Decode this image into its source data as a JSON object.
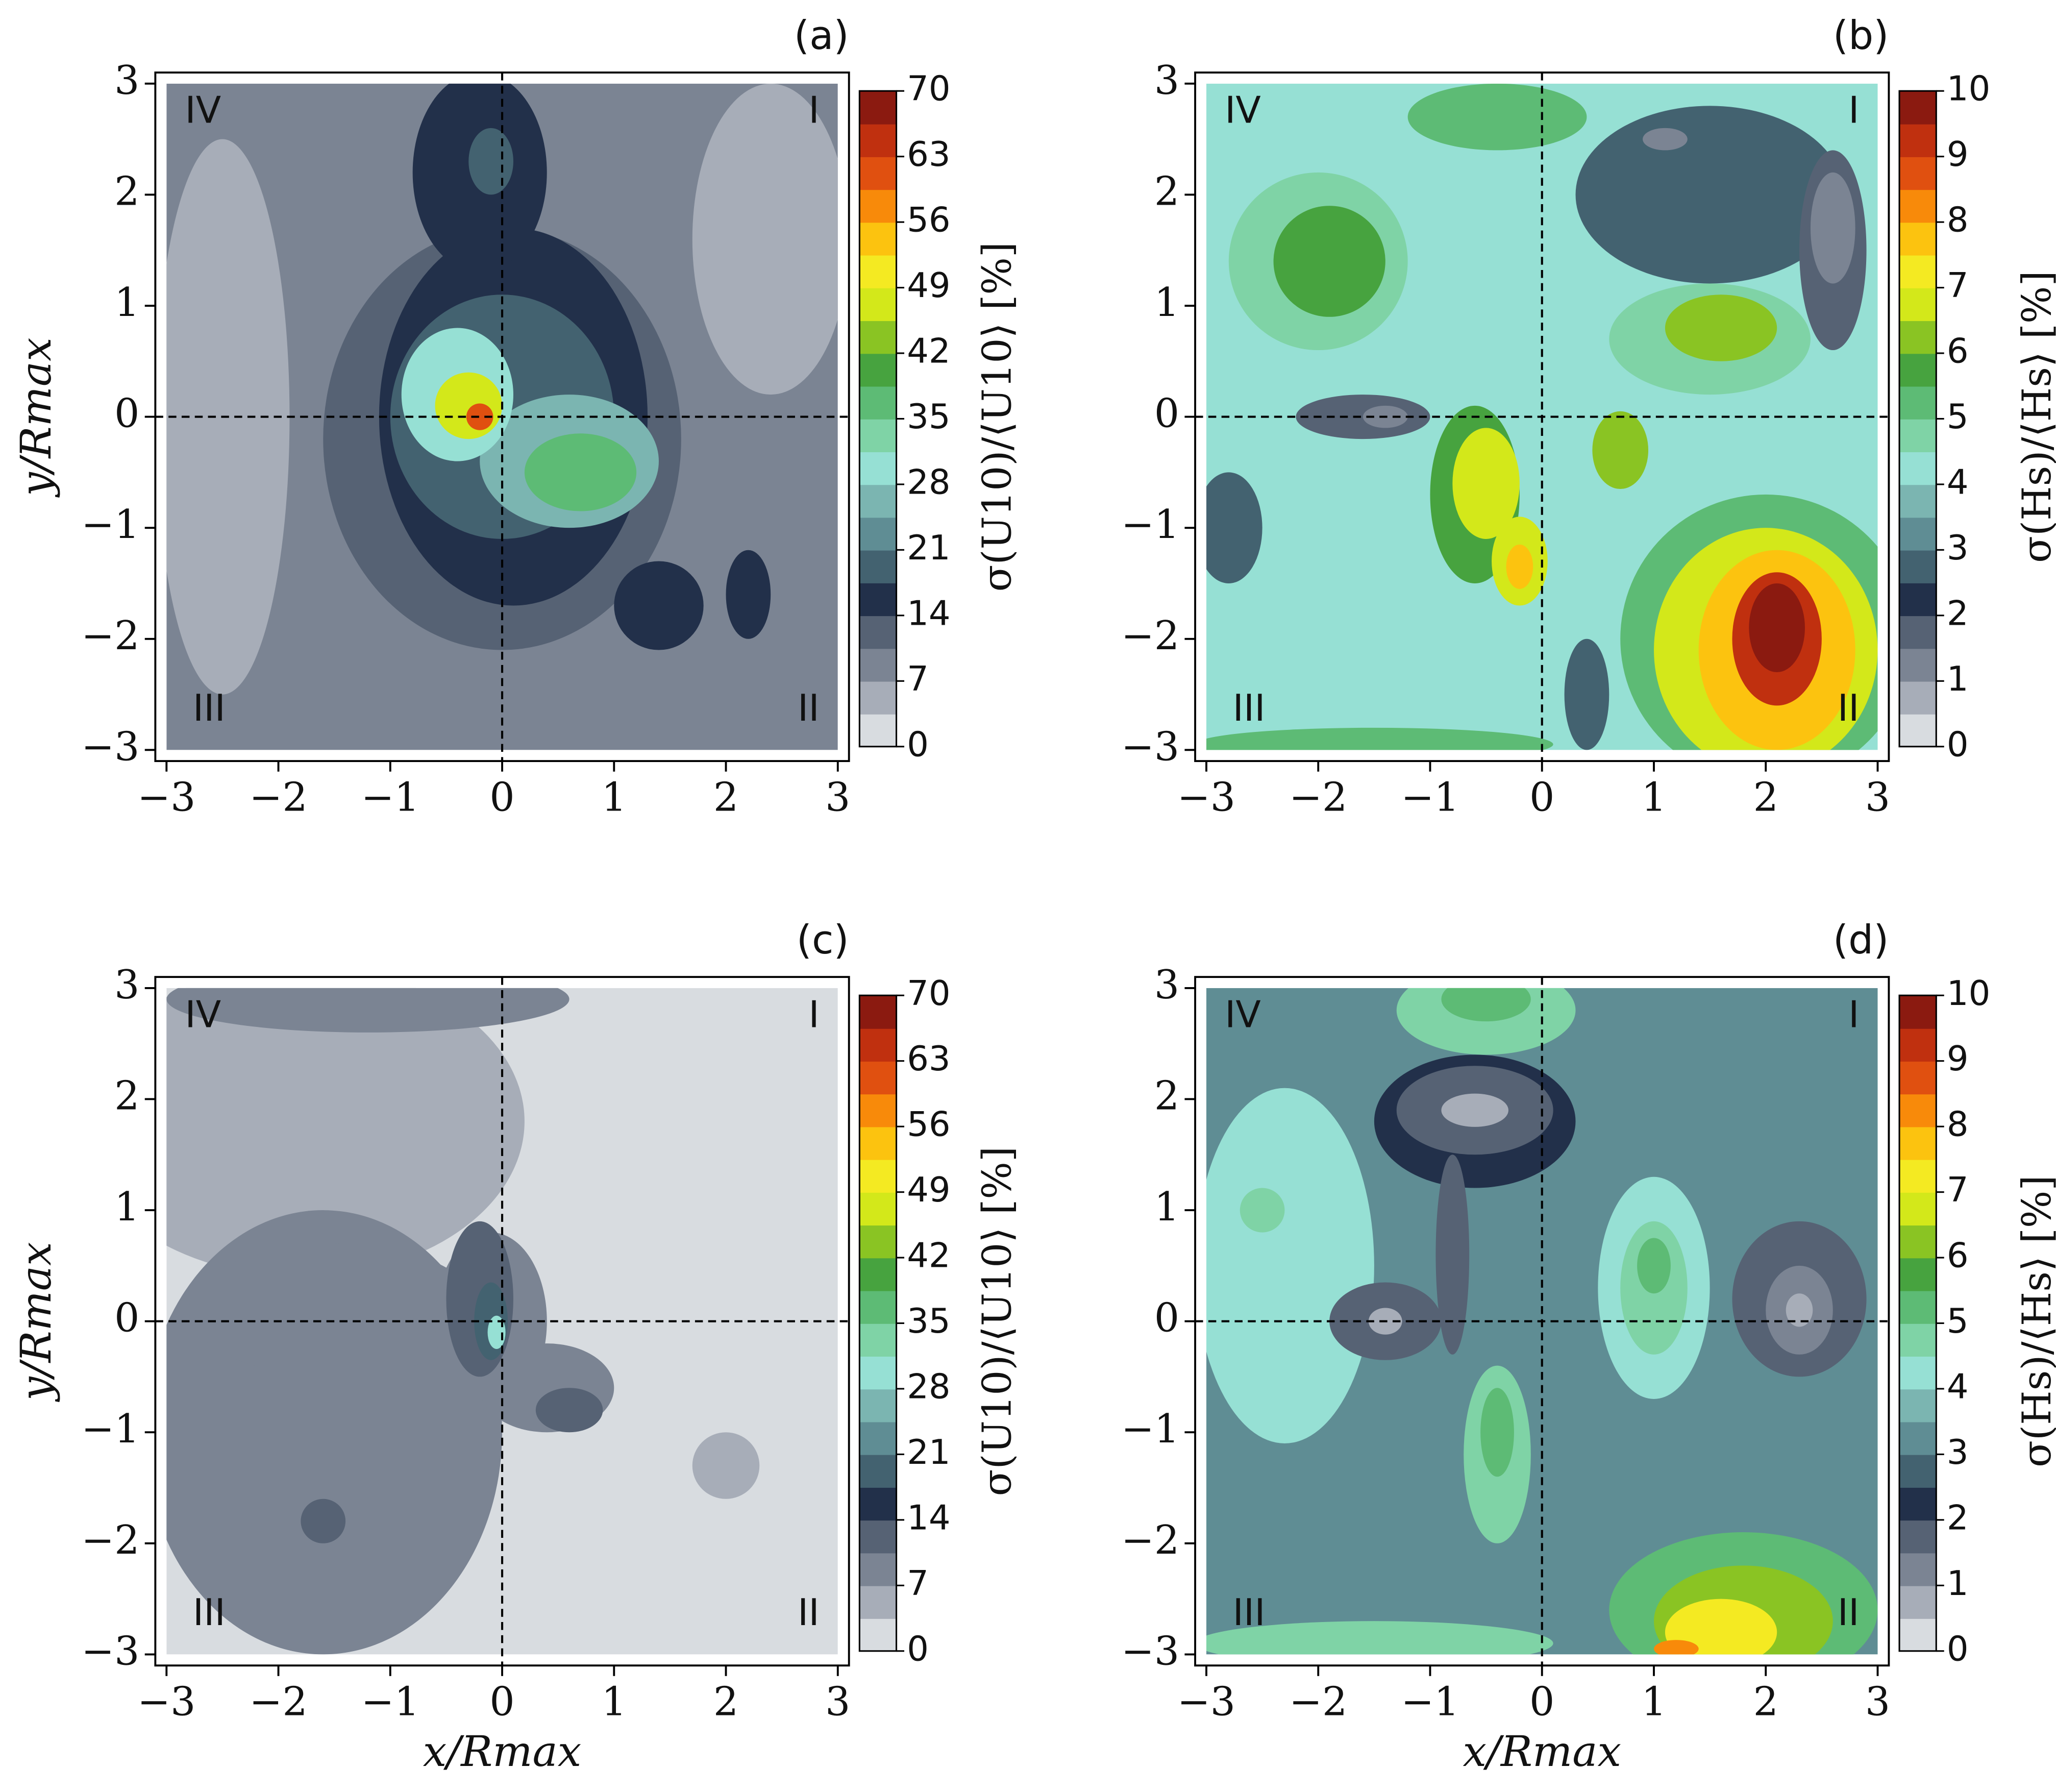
{
  "chart_data": [
    {
      "type": "contour",
      "title": "(a)",
      "ylabel": "y/Rmax",
      "colorbar_label": "σ(U10)/⟨U10⟩ [%]",
      "xlim": [
        -3.1,
        3.1
      ],
      "ylim": [
        -3.1,
        3.1
      ],
      "xticks": [
        {
          "value": -3,
          "label": "−3"
        },
        {
          "value": -2,
          "label": "−2"
        },
        {
          "value": -1,
          "label": "−1"
        },
        0,
        1,
        2,
        3
      ],
      "yticks": [
        {
          "value": -3,
          "label": "−3"
        },
        {
          "value": -2,
          "label": "−2"
        },
        {
          "value": -1,
          "label": "−1"
        },
        0,
        1,
        2,
        3
      ],
      "clim": [
        0,
        70
      ],
      "cticks": [
        0,
        7,
        14,
        21,
        28,
        35,
        42,
        49,
        56,
        63,
        70
      ],
      "colors": [
        "#d8dce0",
        "#a7adb8",
        "#7b8493",
        "#566274",
        "#22304a",
        "#436270",
        "#5f8d94",
        "#7bb5b1",
        "#96e0d4",
        "#7fd3a6",
        "#5dbb75",
        "#47a33f",
        "#8ac423",
        "#d3e81a",
        "#f4ea22",
        "#fcc30f",
        "#f88a0a",
        "#e05010",
        "#c0300f",
        "#8b1a10"
      ],
      "quadrant_labels": [
        "I",
        "II",
        "III",
        "IV"
      ],
      "field_x": [
        -3,
        3
      ],
      "field_y": [
        -3,
        3
      ],
      "background_level": 9,
      "regions": [
        {
          "x": -2.5,
          "y": 0,
          "rx": 0.6,
          "ry": 2.5,
          "level": 5
        },
        {
          "x": 2.4,
          "y": 1.6,
          "rx": 0.7,
          "ry": 1.4,
          "level": 5
        },
        {
          "x": 0,
          "y": -0.2,
          "rx": 1.6,
          "ry": 1.9,
          "level": 12
        },
        {
          "x": 0.1,
          "y": 0,
          "rx": 1.2,
          "ry": 1.7,
          "level": 15
        },
        {
          "x": -0.2,
          "y": 2.2,
          "rx": 0.6,
          "ry": 0.9,
          "level": 15
        },
        {
          "x": 1.4,
          "y": -1.7,
          "rx": 0.4,
          "ry": 0.4,
          "level": 15
        },
        {
          "x": 2.2,
          "y": -1.6,
          "rx": 0.2,
          "ry": 0.4,
          "level": 15
        },
        {
          "x": 0,
          "y": 0,
          "rx": 1.0,
          "ry": 1.1,
          "level": 18
        },
        {
          "x": -0.1,
          "y": 2.3,
          "rx": 0.2,
          "ry": 0.3,
          "level": 18
        },
        {
          "x": 0.6,
          "y": -0.4,
          "rx": 0.8,
          "ry": 0.6,
          "level": 25
        },
        {
          "x": -0.4,
          "y": 0.2,
          "rx": 0.5,
          "ry": 0.6,
          "level": 30
        },
        {
          "x": 0.7,
          "y": -0.5,
          "rx": 0.5,
          "ry": 0.35,
          "level": 38
        },
        {
          "x": -0.3,
          "y": 0.1,
          "rx": 0.3,
          "ry": 0.3,
          "level": 47
        },
        {
          "x": -0.2,
          "y": 0,
          "rx": 0.12,
          "ry": 0.12,
          "level": 60
        }
      ]
    },
    {
      "type": "contour",
      "title": "(b)",
      "colorbar_label": "σ(Hs)/⟨Hs⟩ [%]",
      "xlim": [
        -3.1,
        3.1
      ],
      "ylim": [
        -3.1,
        3.1
      ],
      "xticks": [
        {
          "value": -3,
          "label": "−3"
        },
        {
          "value": -2,
          "label": "−2"
        },
        {
          "value": -1,
          "label": "−1"
        },
        0,
        1,
        2,
        3
      ],
      "yticks": [
        {
          "value": -3,
          "label": "−3"
        },
        {
          "value": -2,
          "label": "−2"
        },
        {
          "value": -1,
          "label": "−1"
        },
        0,
        1,
        2,
        3
      ],
      "clim": [
        0,
        10
      ],
      "cticks": [
        0,
        1,
        2,
        3,
        4,
        5,
        6,
        7,
        8,
        9,
        10
      ],
      "colors": [
        "#d8dce0",
        "#a7adb8",
        "#7b8493",
        "#566274",
        "#22304a",
        "#436270",
        "#5f8d94",
        "#7bb5b1",
        "#96e0d4",
        "#7fd3a6",
        "#5dbb75",
        "#47a33f",
        "#8ac423",
        "#d3e81a",
        "#f4ea22",
        "#fcc30f",
        "#f88a0a",
        "#e05010",
        "#c0300f",
        "#8b1a10"
      ],
      "quadrant_labels": [
        "I",
        "II",
        "III",
        "IV"
      ],
      "field_x": [
        -3,
        3
      ],
      "field_y": [
        -3,
        3
      ],
      "background_level": 4.2,
      "regions": [
        {
          "x": -2.8,
          "y": -1,
          "rx": 0.3,
          "ry": 0.5,
          "level": 2.7
        },
        {
          "x": -2,
          "y": 1.4,
          "rx": 0.8,
          "ry": 0.8,
          "level": 4.7
        },
        {
          "x": -1.9,
          "y": 1.4,
          "rx": 0.5,
          "ry": 0.5,
          "level": 5.7
        },
        {
          "x": -0.4,
          "y": 2.7,
          "rx": 0.8,
          "ry": 0.3,
          "level": 5.2
        },
        {
          "x": 1.5,
          "y": 2,
          "rx": 1.2,
          "ry": 0.8,
          "level": 2.7
        },
        {
          "x": 2.6,
          "y": 1.5,
          "rx": 0.3,
          "ry": 0.9,
          "level": 1.7
        },
        {
          "x": 2.6,
          "y": 1.7,
          "rx": 0.2,
          "ry": 0.5,
          "level": 1.2
        },
        {
          "x": 1.1,
          "y": 2.5,
          "rx": 0.2,
          "ry": 0.1,
          "level": 1.2
        },
        {
          "x": 1.5,
          "y": 0.7,
          "rx": 0.9,
          "ry": 0.5,
          "level": 4.7
        },
        {
          "x": 1.6,
          "y": 0.8,
          "rx": 0.5,
          "ry": 0.3,
          "level": 6.2
        },
        {
          "x": -1.6,
          "y": 0,
          "rx": 0.6,
          "ry": 0.2,
          "level": 1.7
        },
        {
          "x": -1.4,
          "y": 0,
          "rx": 0.2,
          "ry": 0.1,
          "level": 1.2
        },
        {
          "x": -0.6,
          "y": -0.7,
          "rx": 0.4,
          "ry": 0.8,
          "level": 5.5
        },
        {
          "x": -0.5,
          "y": -0.6,
          "rx": 0.3,
          "ry": 0.5,
          "level": 6.5
        },
        {
          "x": -0.2,
          "y": -1.3,
          "rx": 0.25,
          "ry": 0.4,
          "level": 6.5
        },
        {
          "x": -0.2,
          "y": -1.35,
          "rx": 0.12,
          "ry": 0.2,
          "level": 7.8
        },
        {
          "x": 2,
          "y": -2,
          "rx": 1.3,
          "ry": 1.3,
          "level": 5.2
        },
        {
          "x": 2,
          "y": -2.1,
          "rx": 1.0,
          "ry": 1.1,
          "level": 6.7
        },
        {
          "x": 2.1,
          "y": -2.1,
          "rx": 0.7,
          "ry": 0.9,
          "level": 7.7
        },
        {
          "x": 2.1,
          "y": -2,
          "rx": 0.4,
          "ry": 0.6,
          "level": 9.2
        },
        {
          "x": 2.1,
          "y": -1.9,
          "rx": 0.25,
          "ry": 0.4,
          "level": 9.7
        },
        {
          "x": -1.5,
          "y": -2.95,
          "rx": 1.6,
          "ry": 0.15,
          "level": 5.2
        },
        {
          "x": 0.7,
          "y": -0.3,
          "rx": 0.25,
          "ry": 0.35,
          "level": 6.2
        },
        {
          "x": 0.4,
          "y": -2.5,
          "rx": 0.2,
          "ry": 0.5,
          "level": 2.7
        }
      ]
    },
    {
      "type": "contour",
      "title": "(c)",
      "xlabel": "x/Rmax",
      "ylabel": "y/Rmax",
      "colorbar_label": "σ(U10)/⟨U10⟩ [%]",
      "xlim": [
        -3.1,
        3.1
      ],
      "ylim": [
        -3.1,
        3.1
      ],
      "xticks": [
        {
          "value": -3,
          "label": "−3"
        },
        {
          "value": -2,
          "label": "−2"
        },
        {
          "value": -1,
          "label": "−1"
        },
        0,
        1,
        2,
        3
      ],
      "yticks": [
        {
          "value": -3,
          "label": "−3"
        },
        {
          "value": -2,
          "label": "−2"
        },
        {
          "value": -1,
          "label": "−1"
        },
        0,
        1,
        2,
        3
      ],
      "clim": [
        0,
        70
      ],
      "cticks": [
        0,
        7,
        14,
        21,
        28,
        35,
        42,
        49,
        56,
        63,
        70
      ],
      "colors": [
        "#d8dce0",
        "#a7adb8",
        "#7b8493",
        "#566274",
        "#22304a",
        "#436270",
        "#5f8d94",
        "#7bb5b1",
        "#96e0d4",
        "#7fd3a6",
        "#5dbb75",
        "#47a33f",
        "#8ac423",
        "#d3e81a",
        "#f4ea22",
        "#fcc30f",
        "#f88a0a",
        "#e05010",
        "#c0300f",
        "#8b1a10"
      ],
      "quadrant_labels": [
        "I",
        "II",
        "III",
        "IV"
      ],
      "field_x": [
        -3,
        3
      ],
      "field_y": [
        -3,
        3
      ],
      "background_level": 2,
      "regions": [
        {
          "x": -1.8,
          "y": 1.8,
          "rx": 2.0,
          "ry": 1.4,
          "level": 5
        },
        {
          "x": -1.6,
          "y": -1,
          "rx": 1.6,
          "ry": 2.0,
          "level": 10
        },
        {
          "x": -1.5,
          "y": 0.1,
          "rx": 1.3,
          "ry": 0.6,
          "level": 10
        },
        {
          "x": -1.2,
          "y": 2.9,
          "rx": 1.8,
          "ry": 0.3,
          "level": 10
        },
        {
          "x": 2,
          "y": -1.3,
          "rx": 0.3,
          "ry": 0.3,
          "level": 5
        },
        {
          "x": -0.1,
          "y": 0,
          "rx": 0.5,
          "ry": 0.8,
          "level": 10
        },
        {
          "x": 0.4,
          "y": -0.6,
          "rx": 0.6,
          "ry": 0.4,
          "level": 10
        },
        {
          "x": -0.2,
          "y": 0.2,
          "rx": 0.3,
          "ry": 0.7,
          "level": 13
        },
        {
          "x": 0.6,
          "y": -0.8,
          "rx": 0.3,
          "ry": 0.2,
          "level": 13
        },
        {
          "x": -1.6,
          "y": -1.8,
          "rx": 0.2,
          "ry": 0.2,
          "level": 13
        },
        {
          "x": -0.1,
          "y": 0,
          "rx": 0.15,
          "ry": 0.35,
          "level": 20
        },
        {
          "x": -0.05,
          "y": -0.1,
          "rx": 0.08,
          "ry": 0.15,
          "level": 28
        }
      ]
    },
    {
      "type": "contour",
      "title": "(d)",
      "xlabel": "x/Rmax",
      "colorbar_label": "σ(Hs)/⟨Hs⟩ [%]",
      "xlim": [
        -3.1,
        3.1
      ],
      "ylim": [
        -3.1,
        3.1
      ],
      "xticks": [
        {
          "value": -3,
          "label": "−3"
        },
        {
          "value": -2,
          "label": "−2"
        },
        {
          "value": -1,
          "label": "−1"
        },
        0,
        1,
        2,
        3
      ],
      "yticks": [
        {
          "value": -3,
          "label": "−3"
        },
        {
          "value": -2,
          "label": "−2"
        },
        {
          "value": -1,
          "label": "−1"
        },
        0,
        1,
        2,
        3
      ],
      "clim": [
        0,
        10
      ],
      "cticks": [
        0,
        1,
        2,
        3,
        4,
        5,
        6,
        7,
        8,
        9,
        10
      ],
      "colors": [
        "#d8dce0",
        "#a7adb8",
        "#7b8493",
        "#566274",
        "#22304a",
        "#436270",
        "#5f8d94",
        "#7bb5b1",
        "#96e0d4",
        "#7fd3a6",
        "#5dbb75",
        "#47a33f",
        "#8ac423",
        "#d3e81a",
        "#f4ea22",
        "#fcc30f",
        "#f88a0a",
        "#e05010",
        "#c0300f",
        "#8b1a10"
      ],
      "quadrant_labels": [
        "I",
        "II",
        "III",
        "IV"
      ],
      "field_x": [
        -3,
        3
      ],
      "field_y": [
        -3,
        3
      ],
      "background_level": 3.2,
      "regions": [
        {
          "x": -2.3,
          "y": 0.5,
          "rx": 0.8,
          "ry": 1.6,
          "level": 4.2
        },
        {
          "x": -2.5,
          "y": 1,
          "rx": 0.2,
          "ry": 0.2,
          "level": 4.7
        },
        {
          "x": -0.5,
          "y": 2.8,
          "rx": 0.8,
          "ry": 0.4,
          "level": 4.7
        },
        {
          "x": -0.5,
          "y": 2.9,
          "rx": 0.4,
          "ry": 0.2,
          "level": 5.2
        },
        {
          "x": -0.6,
          "y": 1.8,
          "rx": 0.9,
          "ry": 0.6,
          "level": 2.2
        },
        {
          "x": -0.6,
          "y": 1.9,
          "rx": 0.7,
          "ry": 0.4,
          "level": 1.7
        },
        {
          "x": -0.6,
          "y": 1.9,
          "rx": 0.3,
          "ry": 0.15,
          "level": 0.7
        },
        {
          "x": -0.8,
          "y": 0.6,
          "rx": 0.15,
          "ry": 0.9,
          "level": 1.7
        },
        {
          "x": -1.4,
          "y": 0,
          "rx": 0.5,
          "ry": 0.35,
          "level": 1.7
        },
        {
          "x": -1.4,
          "y": 0,
          "rx": 0.15,
          "ry": 0.12,
          "level": 0.7
        },
        {
          "x": 1,
          "y": 0.3,
          "rx": 0.5,
          "ry": 1,
          "level": 4.2
        },
        {
          "x": 1,
          "y": 0.3,
          "rx": 0.3,
          "ry": 0.6,
          "level": 4.7
        },
        {
          "x": 1,
          "y": 0.5,
          "rx": 0.15,
          "ry": 0.25,
          "level": 5.2
        },
        {
          "x": 2.3,
          "y": 0.2,
          "rx": 0.6,
          "ry": 0.7,
          "level": 1.7
        },
        {
          "x": 2.3,
          "y": 0.1,
          "rx": 0.3,
          "ry": 0.4,
          "level": 1.2
        },
        {
          "x": 2.3,
          "y": 0.1,
          "rx": 0.12,
          "ry": 0.15,
          "level": 0.7
        },
        {
          "x": -0.4,
          "y": -1.2,
          "rx": 0.3,
          "ry": 0.8,
          "level": 4.7
        },
        {
          "x": -0.4,
          "y": -1,
          "rx": 0.15,
          "ry": 0.4,
          "level": 5.2
        },
        {
          "x": 1.8,
          "y": -2.6,
          "rx": 1.2,
          "ry": 0.7,
          "level": 5.2
        },
        {
          "x": 1.8,
          "y": -2.7,
          "rx": 0.8,
          "ry": 0.5,
          "level": 6.2
        },
        {
          "x": 1.6,
          "y": -2.8,
          "rx": 0.5,
          "ry": 0.3,
          "level": 7.2
        },
        {
          "x": 1.2,
          "y": -2.95,
          "rx": 0.2,
          "ry": 0.08,
          "level": 8.2
        },
        {
          "x": -1.5,
          "y": -2.9,
          "rx": 1.6,
          "ry": 0.2,
          "level": 4.7
        }
      ]
    }
  ]
}
